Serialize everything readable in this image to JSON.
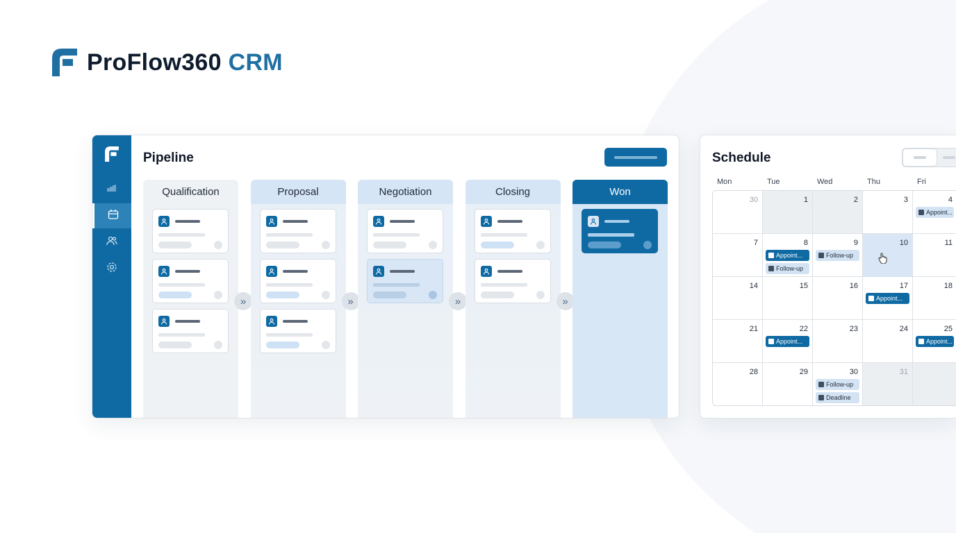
{
  "brand": {
    "name": "ProFlow360",
    "suffix": "CRM",
    "color": "#1f6fa3"
  },
  "pipeline": {
    "title": "Pipeline",
    "sidebar": [
      {
        "icon": "chart-icon"
      },
      {
        "icon": "calendar-icon",
        "active": true
      },
      {
        "icon": "users-icon"
      },
      {
        "icon": "gear-icon"
      }
    ],
    "columns": [
      {
        "label": "Qualification",
        "style": "plain",
        "cards": [
          {
            "icon": "user-icon",
            "pill": "grey"
          },
          {
            "icon": "user-icon",
            "pill": "blue"
          },
          {
            "icon": "user-icon",
            "pill": "grey"
          }
        ]
      },
      {
        "label": "Proposal",
        "style": "blue",
        "cards": [
          {
            "icon": "briefcase-icon",
            "pill": "grey"
          },
          {
            "icon": "document-icon",
            "pill": "blue"
          },
          {
            "icon": "user-icon",
            "pill": "blue"
          }
        ]
      },
      {
        "label": "Negotiation",
        "style": "blue",
        "cards": [
          {
            "icon": "user-icon",
            "pill": "grey"
          },
          {
            "icon": "chat-icon",
            "pill": "blue",
            "highlight": true
          }
        ]
      },
      {
        "label": "Closing",
        "style": "blue",
        "cards": [
          {
            "icon": "user-icon",
            "pill": "blue"
          },
          {
            "icon": "user-icon",
            "pill": "grey"
          }
        ]
      },
      {
        "label": "Won",
        "style": "won",
        "cards": [
          {
            "icon": "user-icon",
            "pill": "grey",
            "dark": true
          }
        ]
      }
    ],
    "accent": "#0f6aa3"
  },
  "schedule": {
    "title": "Schedule",
    "weekdays": [
      "Mon",
      "Tue",
      "Wed",
      "Thu",
      "Fri"
    ],
    "weeks": [
      [
        {
          "n": "30",
          "muted": true
        },
        {
          "n": "1",
          "other": true
        },
        {
          "n": "2",
          "other": true
        },
        {
          "n": "3"
        },
        {
          "n": "4",
          "events": [
            {
              "label": "Appoint...",
              "kind": "light"
            }
          ]
        }
      ],
      [
        {
          "n": "7"
        },
        {
          "n": "8",
          "events": [
            {
              "label": "Appoint...",
              "kind": "dark"
            },
            {
              "label": "Follow-up",
              "kind": "light"
            }
          ]
        },
        {
          "n": "9",
          "events": [
            {
              "label": "Follow-up",
              "kind": "light"
            }
          ]
        },
        {
          "n": "10",
          "selected": true
        },
        {
          "n": "11"
        }
      ],
      [
        {
          "n": "14"
        },
        {
          "n": "15"
        },
        {
          "n": "16"
        },
        {
          "n": "17",
          "events": [
            {
              "label": "Appoint...",
              "kind": "dark"
            }
          ]
        },
        {
          "n": "18"
        }
      ],
      [
        {
          "n": "21"
        },
        {
          "n": "22",
          "events": [
            {
              "label": "Appoint...",
              "kind": "dark"
            }
          ]
        },
        {
          "n": "23"
        },
        {
          "n": "24"
        },
        {
          "n": "25",
          "events": [
            {
              "label": "Appoint...",
              "kind": "dark"
            }
          ]
        }
      ],
      [
        {
          "n": "28"
        },
        {
          "n": "29"
        },
        {
          "n": "30",
          "events": [
            {
              "label": "Follow-up",
              "kind": "light"
            },
            {
              "label": "Deadline",
              "kind": "light"
            }
          ]
        },
        {
          "n": "31",
          "muted": true,
          "other": true
        },
        {
          "n": "",
          "other": true
        }
      ]
    ]
  }
}
